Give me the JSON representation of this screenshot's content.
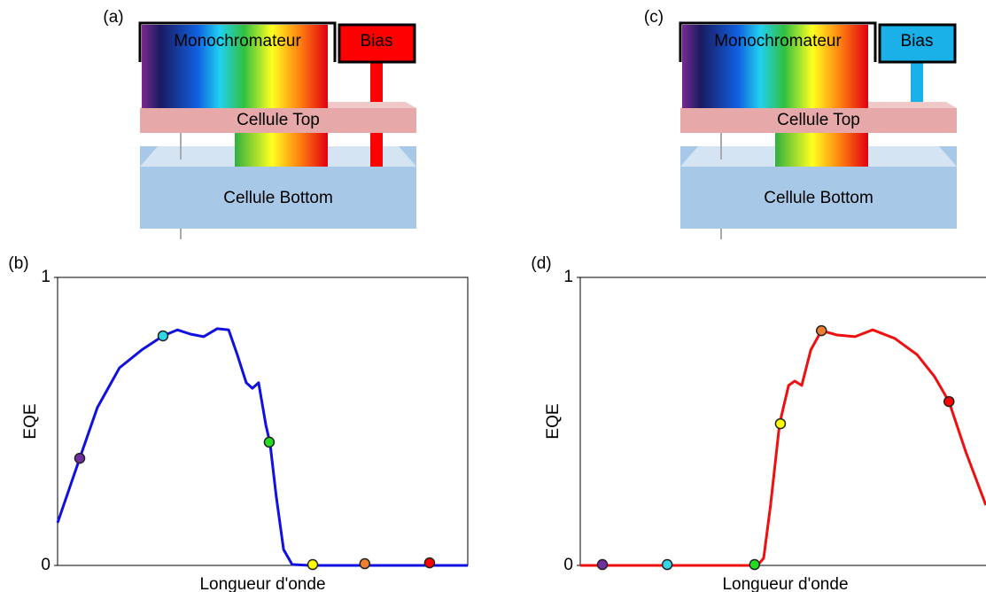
{
  "diagrams": [
    {
      "label": "(a)",
      "source": "Monochromateur",
      "bias": "Bias",
      "bias_color": "#ff0000",
      "bias_reaches": "bottom",
      "top_cell": "Cellule Top",
      "bottom_cell": "Cellule Bottom"
    },
    {
      "label": "(c)",
      "source": "Monochromateur",
      "bias": "Bias",
      "bias_color": "#1ab0e8",
      "bias_reaches": "top",
      "top_cell": "Cellule Top",
      "bottom_cell": "Cellule Bottom"
    }
  ],
  "chart_data": [
    {
      "type": "line",
      "panel_label": "(b)",
      "ylabel": "EQE",
      "xlabel": "Longueur d'onde",
      "xlim": [
        0,
        1
      ],
      "ylim": [
        0,
        1
      ],
      "yticks": [
        0,
        1
      ],
      "series": [
        {
          "color": "#1010e0",
          "x": [
            0,
            0.054,
            0.097,
            0.151,
            0.205,
            0.257,
            0.292,
            0.324,
            0.356,
            0.389,
            0.417,
            0.438,
            0.46,
            0.475,
            0.49,
            0.508,
            0.518,
            0.533,
            0.551,
            0.572,
            0.616,
            1
          ],
          "values": [
            0.148,
            0.372,
            0.548,
            0.686,
            0.748,
            0.797,
            0.818,
            0.803,
            0.794,
            0.822,
            0.818,
            0.732,
            0.634,
            0.615,
            0.634,
            0.486,
            0.425,
            0.24,
            0.055,
            0.003,
            0,
            0
          ]
        }
      ],
      "markers": {
        "x": [
          0.054,
          0.257,
          0.516,
          0.622,
          0.749,
          0.907
        ],
        "values": [
          0.372,
          0.797,
          0.428,
          0.003,
          0.006,
          0.009
        ],
        "colors": [
          "#7030a0",
          "#33d6e6",
          "#22dd22",
          "#ffff00",
          "#f08030",
          "#ff0000"
        ]
      }
    },
    {
      "type": "line",
      "panel_label": "(d)",
      "ylabel": "EQE",
      "xlabel": "Longueur d'onde",
      "xlim": [
        0,
        1
      ],
      "ylim": [
        0,
        1
      ],
      "yticks": [
        0,
        1
      ],
      "series": [
        {
          "color": "#ee1010",
          "x": [
            0,
            0.432,
            0.447,
            0.464,
            0.486,
            0.508,
            0.523,
            0.54,
            0.562,
            0.588,
            0.626,
            0.67,
            0.713,
            0.767,
            0.821,
            0.864,
            0.899,
            0.94,
            0.989
          ],
          "values": [
            0,
            0,
            0.025,
            0.209,
            0.492,
            0.625,
            0.64,
            0.625,
            0.748,
            0.815,
            0.8,
            0.794,
            0.818,
            0.788,
            0.732,
            0.655,
            0.569,
            0.394,
            0.209
          ]
        }
      ],
      "markers": {
        "x": [
          0.054,
          0.212,
          0.425,
          0.488,
          0.588,
          0.899
        ],
        "values": [
          0.003,
          0.003,
          0.003,
          0.492,
          0.815,
          0.569
        ],
        "colors": [
          "#7030a0",
          "#33d6e6",
          "#22dd22",
          "#ffff00",
          "#f08030",
          "#ff0000"
        ]
      }
    }
  ]
}
